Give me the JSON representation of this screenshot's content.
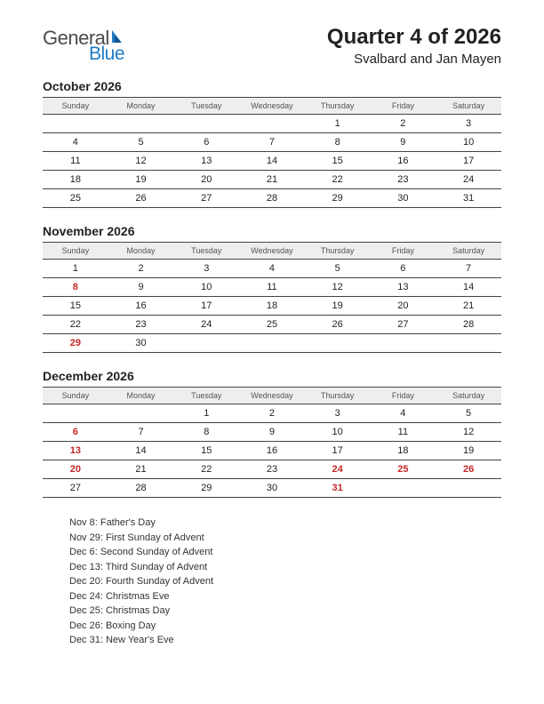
{
  "logo": {
    "line1": "General",
    "line2": "Blue",
    "color1": "#4a4a4a",
    "color2": "#1e7bc4"
  },
  "header": {
    "title": "Quarter 4 of 2026",
    "region": "Svalbard and Jan Mayen"
  },
  "style": {
    "background_color": "#ffffff",
    "header_bg": "#eeeeee",
    "border_color": "#444444",
    "text_color": "#222222",
    "holiday_color": "#c62828",
    "day_header_fontsize": 9,
    "cell_fontsize": 11,
    "month_title_fontsize": 14,
    "title_fontsize": 24
  },
  "day_headers": [
    "Sunday",
    "Monday",
    "Tuesday",
    "Wednesday",
    "Thursday",
    "Friday",
    "Saturday"
  ],
  "months": [
    {
      "title": "October 2026",
      "weeks": [
        [
          {
            "d": ""
          },
          {
            "d": ""
          },
          {
            "d": ""
          },
          {
            "d": ""
          },
          {
            "d": "1"
          },
          {
            "d": "2"
          },
          {
            "d": "3"
          }
        ],
        [
          {
            "d": "4"
          },
          {
            "d": "5"
          },
          {
            "d": "6"
          },
          {
            "d": "7"
          },
          {
            "d": "8"
          },
          {
            "d": "9"
          },
          {
            "d": "10"
          }
        ],
        [
          {
            "d": "11"
          },
          {
            "d": "12"
          },
          {
            "d": "13"
          },
          {
            "d": "14"
          },
          {
            "d": "15"
          },
          {
            "d": "16"
          },
          {
            "d": "17"
          }
        ],
        [
          {
            "d": "18"
          },
          {
            "d": "19"
          },
          {
            "d": "20"
          },
          {
            "d": "21"
          },
          {
            "d": "22"
          },
          {
            "d": "23"
          },
          {
            "d": "24"
          }
        ],
        [
          {
            "d": "25"
          },
          {
            "d": "26"
          },
          {
            "d": "27"
          },
          {
            "d": "28"
          },
          {
            "d": "29"
          },
          {
            "d": "30"
          },
          {
            "d": "31"
          }
        ]
      ]
    },
    {
      "title": "November 2026",
      "weeks": [
        [
          {
            "d": "1"
          },
          {
            "d": "2"
          },
          {
            "d": "3"
          },
          {
            "d": "4"
          },
          {
            "d": "5"
          },
          {
            "d": "6"
          },
          {
            "d": "7"
          }
        ],
        [
          {
            "d": "8",
            "h": true
          },
          {
            "d": "9"
          },
          {
            "d": "10"
          },
          {
            "d": "11"
          },
          {
            "d": "12"
          },
          {
            "d": "13"
          },
          {
            "d": "14"
          }
        ],
        [
          {
            "d": "15"
          },
          {
            "d": "16"
          },
          {
            "d": "17"
          },
          {
            "d": "18"
          },
          {
            "d": "19"
          },
          {
            "d": "20"
          },
          {
            "d": "21"
          }
        ],
        [
          {
            "d": "22"
          },
          {
            "d": "23"
          },
          {
            "d": "24"
          },
          {
            "d": "25"
          },
          {
            "d": "26"
          },
          {
            "d": "27"
          },
          {
            "d": "28"
          }
        ],
        [
          {
            "d": "29",
            "h": true
          },
          {
            "d": "30"
          },
          {
            "d": ""
          },
          {
            "d": ""
          },
          {
            "d": ""
          },
          {
            "d": ""
          },
          {
            "d": ""
          }
        ]
      ]
    },
    {
      "title": "December 2026",
      "weeks": [
        [
          {
            "d": ""
          },
          {
            "d": ""
          },
          {
            "d": "1"
          },
          {
            "d": "2"
          },
          {
            "d": "3"
          },
          {
            "d": "4"
          },
          {
            "d": "5"
          }
        ],
        [
          {
            "d": "6",
            "h": true
          },
          {
            "d": "7"
          },
          {
            "d": "8"
          },
          {
            "d": "9"
          },
          {
            "d": "10"
          },
          {
            "d": "11"
          },
          {
            "d": "12"
          }
        ],
        [
          {
            "d": "13",
            "h": true
          },
          {
            "d": "14"
          },
          {
            "d": "15"
          },
          {
            "d": "16"
          },
          {
            "d": "17"
          },
          {
            "d": "18"
          },
          {
            "d": "19"
          }
        ],
        [
          {
            "d": "20",
            "h": true
          },
          {
            "d": "21"
          },
          {
            "d": "22"
          },
          {
            "d": "23"
          },
          {
            "d": "24",
            "h": true
          },
          {
            "d": "25",
            "h": true
          },
          {
            "d": "26",
            "h": true
          }
        ],
        [
          {
            "d": "27"
          },
          {
            "d": "28"
          },
          {
            "d": "29"
          },
          {
            "d": "30"
          },
          {
            "d": "31",
            "h": true
          },
          {
            "d": ""
          },
          {
            "d": ""
          }
        ]
      ]
    }
  ],
  "holiday_list": [
    "Nov 8: Father's Day",
    "Nov 29: First Sunday of Advent",
    "Dec 6: Second Sunday of Advent",
    "Dec 13: Third Sunday of Advent",
    "Dec 20: Fourth Sunday of Advent",
    "Dec 24: Christmas Eve",
    "Dec 25: Christmas Day",
    "Dec 26: Boxing Day",
    "Dec 31: New Year's Eve"
  ]
}
